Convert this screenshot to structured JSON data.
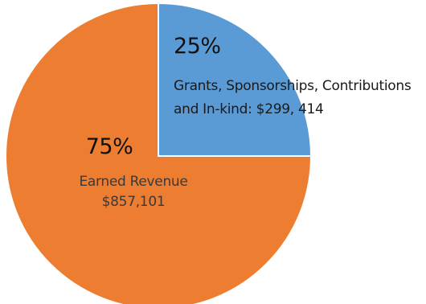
{
  "chart_data": {
    "type": "pie",
    "slices": [
      {
        "percent_label": "25%",
        "value": 299414,
        "percent": 25,
        "label_lines": [
          "Grants, Sponsorships, Contributions",
          "and In-kind: $299, 414"
        ],
        "color": "#5b9bd5"
      },
      {
        "percent_label": "75%",
        "value": 857101,
        "percent": 75,
        "label_lines": [
          "Earned Revenue",
          "$857,101"
        ],
        "color": "#ed7d31"
      }
    ],
    "start_angle_deg": 0,
    "direction": "clockwise"
  }
}
